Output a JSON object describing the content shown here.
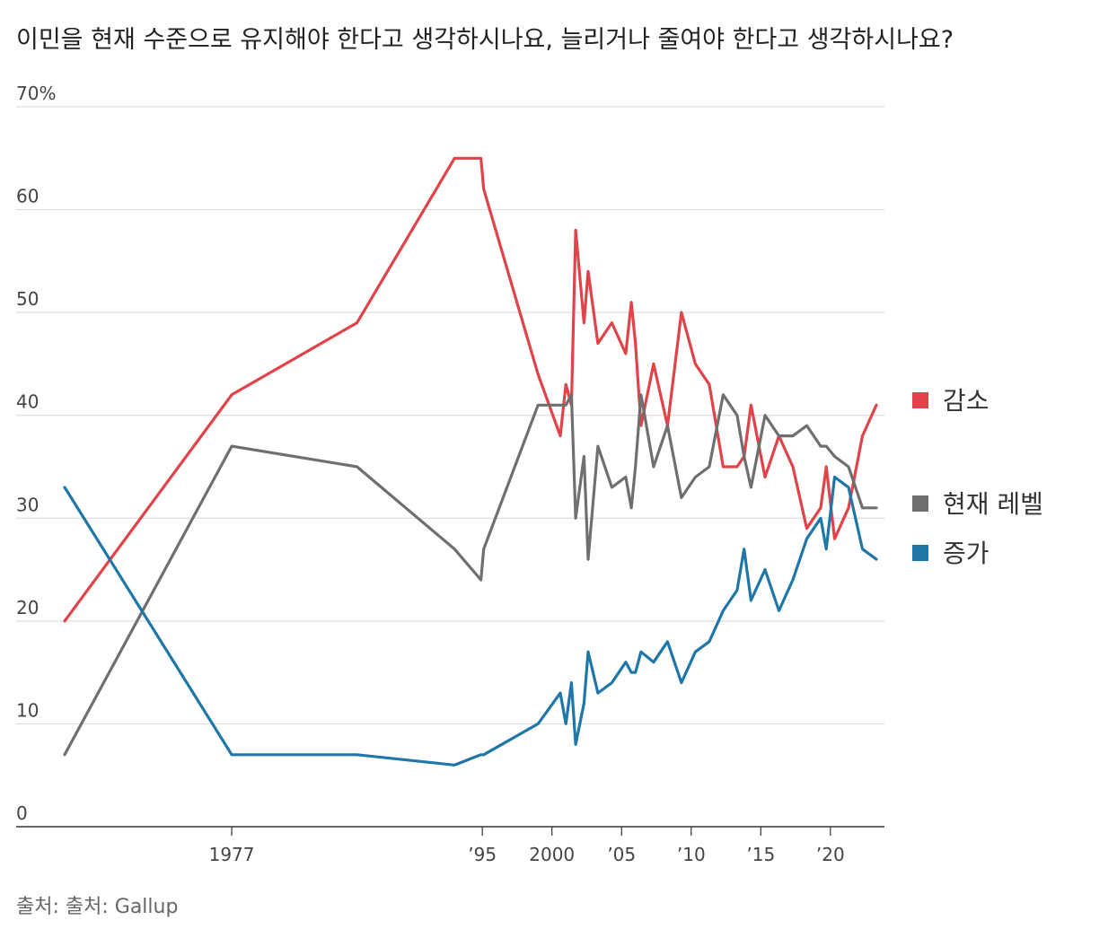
{
  "title": "이민을 현재 수준으로 유지해야 한다고 생각하시나요, 늘리거나 줄여야 한다고 생각하시나요?",
  "source": "출처: 출처: Gallup",
  "colors": {
    "decrease": "#e0434a",
    "same": "#6f6f6f",
    "increase": "#1f77a8",
    "grid": "#dddddd",
    "axis": "#333333"
  },
  "chart_data": {
    "type": "line",
    "title": "이민을 현재 수준으로 유지해야 한다고 생각하시나요, 늘리거나 줄여야 한다고 생각하시나요?",
    "ylim": [
      0,
      70
    ],
    "xlim": [
      1963,
      2024
    ],
    "y_ticks": [
      0,
      10,
      20,
      30,
      40,
      50,
      60,
      70
    ],
    "y_tick_labels": [
      "0",
      "10",
      "20",
      "30",
      "40",
      "50",
      "60",
      "70%"
    ],
    "x_ticks": [
      1977,
      1995,
      2000,
      2005,
      2010,
      2015,
      2020
    ],
    "x_tick_labels": [
      "1977",
      "’95",
      "2000",
      "’05",
      "’10",
      "’15",
      "’20"
    ],
    "grid": true,
    "legend": "right",
    "series": [
      {
        "key": "decrease",
        "name": "감소",
        "x": [
          1965,
          1977,
          1986,
          1993,
          1994.9,
          1995.1,
          1999,
          2000.6,
          2001,
          2001.4,
          2001.7,
          2002.3,
          2002.6,
          2003.3,
          2004.3,
          2005.3,
          2005.7,
          2006,
          2006.4,
          2007.3,
          2008.3,
          2009.3,
          2010.3,
          2011.3,
          2012.3,
          2013.3,
          2013.8,
          2014.3,
          2015.3,
          2016.3,
          2017.3,
          2018.3,
          2019.3,
          2019.7,
          2020.3,
          2021.3,
          2022.3,
          2023.3
        ],
        "values": [
          20,
          42,
          49,
          65,
          65,
          62,
          44,
          38,
          43,
          41,
          58,
          49,
          54,
          47,
          49,
          46,
          51,
          47,
          39,
          45,
          39,
          50,
          45,
          43,
          35,
          35,
          36,
          41,
          34,
          38,
          35,
          29,
          31,
          35,
          28,
          31,
          38,
          41
        ]
      },
      {
        "key": "same",
        "name": "현재 레벨",
        "x": [
          1965,
          1977,
          1986,
          1993,
          1994.9,
          1995.1,
          1999,
          2000.6,
          2001,
          2001.4,
          2001.7,
          2002.3,
          2002.6,
          2003.3,
          2004.3,
          2005.3,
          2005.7,
          2006,
          2006.4,
          2007.3,
          2008.3,
          2009.3,
          2010.3,
          2011.3,
          2012.3,
          2013.3,
          2013.8,
          2014.3,
          2015.3,
          2016.3,
          2017.3,
          2018.3,
          2019.3,
          2019.7,
          2020.3,
          2021.3,
          2022.3,
          2023.3
        ],
        "values": [
          7,
          37,
          35,
          27,
          24,
          27,
          41,
          41,
          41,
          42,
          30,
          36,
          26,
          37,
          33,
          34,
          31,
          35,
          42,
          35,
          39,
          32,
          34,
          35,
          42,
          40,
          36,
          33,
          40,
          38,
          38,
          39,
          37,
          37,
          36,
          35,
          31,
          31
        ]
      },
      {
        "key": "increase",
        "name": "증가",
        "x": [
          1965,
          1977,
          1986,
          1993,
          1994.9,
          1995.1,
          1999,
          2000.6,
          2001,
          2001.4,
          2001.7,
          2002.3,
          2002.6,
          2003.3,
          2004.3,
          2005.3,
          2005.7,
          2006,
          2006.4,
          2007.3,
          2008.3,
          2009.3,
          2010.3,
          2011.3,
          2012.3,
          2013.3,
          2013.8,
          2014.3,
          2015.3,
          2016.3,
          2017.3,
          2018.3,
          2019.3,
          2019.7,
          2020.3,
          2021.3,
          2022.3,
          2023.3
        ],
        "values": [
          33,
          7,
          7,
          6,
          7,
          7,
          10,
          13,
          10,
          14,
          8,
          12,
          17,
          13,
          14,
          16,
          15,
          15,
          17,
          16,
          18,
          14,
          17,
          18,
          21,
          23,
          27,
          22,
          25,
          21,
          24,
          28,
          30,
          27,
          34,
          33,
          27,
          26
        ]
      }
    ]
  }
}
